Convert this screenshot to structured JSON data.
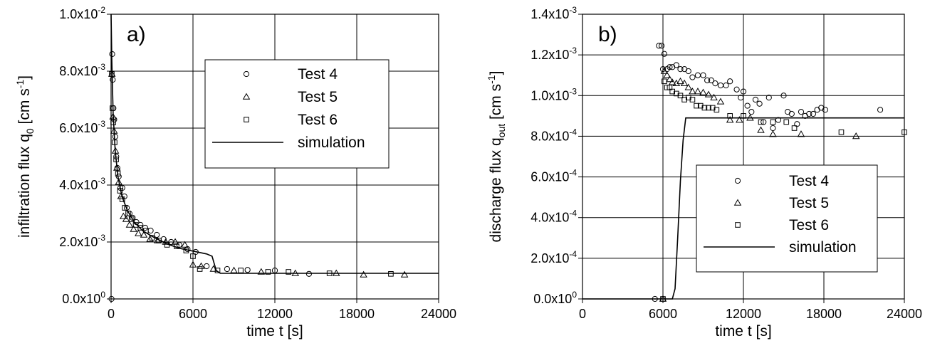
{
  "colors": {
    "ink": "#000000",
    "grid": "#000000",
    "background": "#ffffff"
  },
  "chart_data": [
    {
      "type": "scatter",
      "panel_label": "a)",
      "xlabel": "time t [s]",
      "ylabel": {
        "base": "infiltration flux q",
        "sub": "0",
        "unit_pre": " [cm s",
        "unit_sup": "-1",
        "unit_post": "]"
      },
      "xlim": [
        0,
        24000
      ],
      "ylim": [
        0,
        0.01
      ],
      "xticks": [
        0,
        6000,
        12000,
        18000,
        24000
      ],
      "xtick_labels": [
        "0",
        "6000",
        "12000",
        "18000",
        "24000"
      ],
      "yticks": [
        0,
        0.002,
        0.004,
        0.006,
        0.008,
        0.01
      ],
      "ytick_labels": [
        {
          "mant": "0.0x10",
          "exp": "0"
        },
        {
          "mant": "2.0x10",
          "exp": "-3"
        },
        {
          "mant": "4.0x10",
          "exp": "-3"
        },
        {
          "mant": "6.0x10",
          "exp": "-3"
        },
        {
          "mant": "8.0x10",
          "exp": "-3"
        },
        {
          "mant": "1.0x10",
          "exp": "-2"
        }
      ],
      "grid": true,
      "legend_position": "top-right",
      "series": [
        {
          "name": "Test 4",
          "marker": "circle",
          "x": [
            30,
            80,
            120,
            170,
            230,
            300,
            380,
            460,
            560,
            680,
            820,
            980,
            1150,
            1350,
            1580,
            1850,
            2150,
            2500,
            2900,
            3350,
            3850,
            4400,
            5000,
            5600,
            6200,
            7000,
            8500,
            10000,
            12000,
            14500
          ],
          "y": [
            0.0,
            0.0086,
            0.0077,
            0.0067,
            0.0063,
            0.0057,
            0.005,
            0.0046,
            0.0043,
            0.0039,
            0.0039,
            0.0036,
            0.0032,
            0.003,
            0.00285,
            0.0027,
            0.0026,
            0.0025,
            0.0024,
            0.00225,
            0.0021,
            0.002,
            0.0019,
            0.00175,
            0.00165,
            0.00115,
            0.00105,
            0.00102,
            0.001,
            0.00088
          ]
        },
        {
          "name": "Test 5",
          "marker": "triangle",
          "x": [
            60,
            140,
            220,
            320,
            430,
            560,
            720,
            900,
            1100,
            1350,
            1650,
            2000,
            2400,
            2850,
            3400,
            4000,
            4700,
            5400,
            6000,
            6600,
            7500,
            9000,
            11000,
            13500,
            16500,
            18500,
            21500
          ],
          "y": [
            0.0079,
            0.0064,
            0.0059,
            0.0052,
            0.0046,
            0.0041,
            0.0036,
            0.0029,
            0.0028,
            0.0026,
            0.00245,
            0.0023,
            0.00225,
            0.0021,
            0.00205,
            0.002,
            0.002,
            0.0019,
            0.0012,
            0.00115,
            0.00105,
            0.001,
            0.00095,
            0.0009,
            0.0009,
            0.00085,
            0.00085
          ]
        },
        {
          "name": "Test 6",
          "marker": "square",
          "x": [
            50,
            100,
            160,
            260,
            370,
            500,
            650,
            820,
            1000,
            1250,
            1500,
            1800,
            2150,
            2550,
            3000,
            3500,
            4100,
            4800,
            5500,
            6000,
            6500,
            7800,
            9500,
            11500,
            13000,
            16000,
            20500
          ],
          "y": [
            0.0079,
            0.0067,
            0.0062,
            0.0055,
            0.0049,
            0.0044,
            0.0038,
            0.0035,
            0.0032,
            0.003,
            0.0028,
            0.0026,
            0.0025,
            0.0024,
            0.00215,
            0.00205,
            0.0019,
            0.00185,
            0.0017,
            0.0015,
            0.00105,
            0.001,
            0.001,
            0.00095,
            0.00095,
            0.0009,
            0.00088
          ]
        },
        {
          "name": "simulation",
          "marker": "line",
          "x": [
            0,
            50,
            150,
            300,
            500,
            800,
            1200,
            1700,
            2300,
            3000,
            4000,
            5000,
            6000,
            7000,
            7400,
            7700,
            8000,
            24000
          ],
          "y": [
            0.01,
            0.0084,
            0.0065,
            0.0052,
            0.0043,
            0.0036,
            0.0031,
            0.0027,
            0.0024,
            0.0022,
            0.00195,
            0.00178,
            0.00168,
            0.00158,
            0.0015,
            0.001,
            0.0009,
            0.0009
          ]
        }
      ]
    },
    {
      "type": "scatter",
      "panel_label": "b)",
      "xlabel": "time t [s]",
      "ylabel": {
        "base": "discharge flux q",
        "sub": "out",
        "unit_pre": " [cm s",
        "unit_sup": "-1",
        "unit_post": "]"
      },
      "xlim": [
        0,
        24000
      ],
      "ylim": [
        0,
        0.0014
      ],
      "xticks": [
        0,
        6000,
        12000,
        18000,
        24000
      ],
      "xtick_labels": [
        "0",
        "6000",
        "12000",
        "18000",
        "24000"
      ],
      "yticks": [
        0,
        0.0002,
        0.0004,
        0.0006,
        0.0008,
        0.001,
        0.0012,
        0.0014
      ],
      "ytick_labels": [
        {
          "mant": "0.0x10",
          "exp": "0"
        },
        {
          "mant": "2.0x10",
          "exp": "-4"
        },
        {
          "mant": "4.0x10",
          "exp": "-4"
        },
        {
          "mant": "6.0x10",
          "exp": "-4"
        },
        {
          "mant": "8.0x10",
          "exp": "-4"
        },
        {
          "mant": "1.0x10",
          "exp": "-3"
        },
        {
          "mant": "1.2x10",
          "exp": "-3"
        },
        {
          "mant": "1.4x10",
          "exp": "-3"
        }
      ],
      "grid": true,
      "legend_position": "lower-right",
      "series": [
        {
          "name": "Test 4",
          "marker": "circle",
          "x": [
            5400,
            5700,
            5900,
            6000,
            6100,
            6300,
            6500,
            6700,
            7000,
            7300,
            7600,
            7900,
            8200,
            8600,
            9000,
            9300,
            9600,
            9900,
            10300,
            10700,
            11000,
            11500,
            11800,
            12000,
            12300,
            12600,
            12900,
            13200,
            13500,
            13900,
            14200,
            14600,
            15000,
            15300,
            15600,
            16000,
            16300,
            16600,
            16900,
            17200,
            17500,
            17800,
            18100,
            22200
          ],
          "y": [
            0.0,
            0.001245,
            0.001245,
            0.00113,
            0.001205,
            0.00113,
            0.00114,
            0.00114,
            0.00115,
            0.00113,
            0.00113,
            0.00112,
            0.00109,
            0.0011,
            0.0011,
            0.001075,
            0.001075,
            0.00106,
            0.00105,
            0.00105,
            0.00107,
            0.00103,
            0.00099,
            0.00102,
            0.00095,
            0.00092,
            0.00098,
            0.00096,
            0.00087,
            0.00099,
            0.00084,
            0.00088,
            0.001,
            0.00092,
            0.00091,
            0.00086,
            0.00092,
            0.0009,
            0.00091,
            0.00091,
            0.00093,
            0.00094,
            0.00093,
            0.00093
          ]
        },
        {
          "name": "Test 5",
          "marker": "triangle",
          "x": [
            6000,
            6100,
            6300,
            6500,
            6700,
            7000,
            7300,
            7600,
            7900,
            8200,
            8600,
            9000,
            9400,
            9800,
            10300,
            11000,
            11700,
            12500,
            13300,
            14200,
            16300,
            20400
          ],
          "y": [
            0.0,
            0.00112,
            0.0011,
            0.00108,
            0.001065,
            0.00106,
            0.00107,
            0.00106,
            0.00104,
            0.00102,
            0.00102,
            0.001015,
            0.001005,
            0.00099,
            0.00097,
            0.00088,
            0.00088,
            0.00089,
            0.00083,
            0.00081,
            0.00081,
            0.0008
          ]
        },
        {
          "name": "Test 6",
          "marker": "square",
          "x": [
            6000,
            6100,
            6300,
            6500,
            6700,
            7000,
            7300,
            7600,
            7900,
            8200,
            8500,
            8800,
            9100,
            9400,
            9700,
            10000,
            11000,
            12000,
            13300,
            14200,
            15200,
            15800,
            19300,
            24000
          ],
          "y": [
            0.0,
            0.00107,
            0.00104,
            0.00104,
            0.00102,
            0.00101,
            0.001,
            0.00098,
            0.00099,
            0.00098,
            0.00095,
            0.00095,
            0.00094,
            0.00094,
            0.00094,
            0.00093,
            0.0009,
            0.0009,
            0.00087,
            0.00087,
            0.00087,
            0.00084,
            0.00082,
            0.00082
          ]
        },
        {
          "name": "simulation",
          "marker": "line",
          "x": [
            0,
            6700,
            6900,
            7100,
            7300,
            7500,
            7700,
            24000
          ],
          "y": [
            0,
            0,
            5e-05,
            0.0003,
            0.00058,
            0.00078,
            0.00089,
            0.00089
          ]
        }
      ]
    }
  ]
}
